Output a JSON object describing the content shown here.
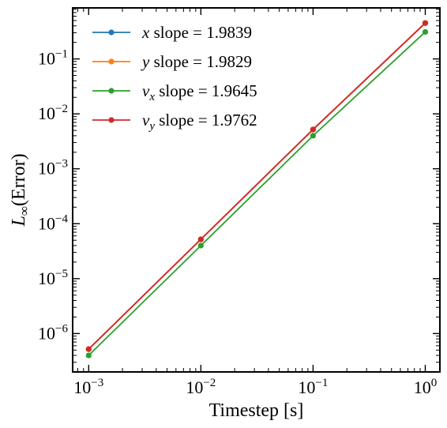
{
  "chart_data": {
    "type": "line",
    "title": "",
    "xlabel": "Timestep [s]",
    "ylabel_base": "L",
    "ylabel_sub": "∞",
    "ylabel_rest": "(Error)",
    "xscale": "log",
    "yscale": "log",
    "xlim": [
      0.00072,
      1.35
    ],
    "ylim": [
      2e-07,
      0.85
    ],
    "grid": false,
    "legend_position": "top-left",
    "x": [
      0.001,
      0.01,
      0.1,
      1
    ],
    "x_tick_labels": [
      "10^-3",
      "10^-2",
      "10^-1",
      "10^0"
    ],
    "y_tick_labels": [
      "10^-6",
      "10^-5",
      "10^-4",
      "10^-3",
      "10^-2",
      "10^-1"
    ],
    "series": [
      {
        "name_base": "x",
        "name_sub": "",
        "name_rest": " slope =  1.9839",
        "color": "#1f77b4",
        "values": [
          5.2e-07,
          5.2e-05,
          0.0052,
          0.45
        ]
      },
      {
        "name_base": "y",
        "name_sub": "",
        "name_rest": " slope =  1.9829",
        "color": "#ff7f0e",
        "values": [
          5.2e-07,
          5.2e-05,
          0.0052,
          0.45
        ]
      },
      {
        "name_base": "v",
        "name_sub": "x",
        "name_rest": " slope =  1.9645",
        "color": "#2ca02c",
        "values": [
          4e-07,
          4e-05,
          0.004,
          0.31
        ]
      },
      {
        "name_base": "v",
        "name_sub": "y",
        "name_rest": " slope =  1.9762",
        "color": "#d62728",
        "values": [
          5.2e-07,
          5.2e-05,
          0.0052,
          0.45
        ]
      }
    ]
  }
}
